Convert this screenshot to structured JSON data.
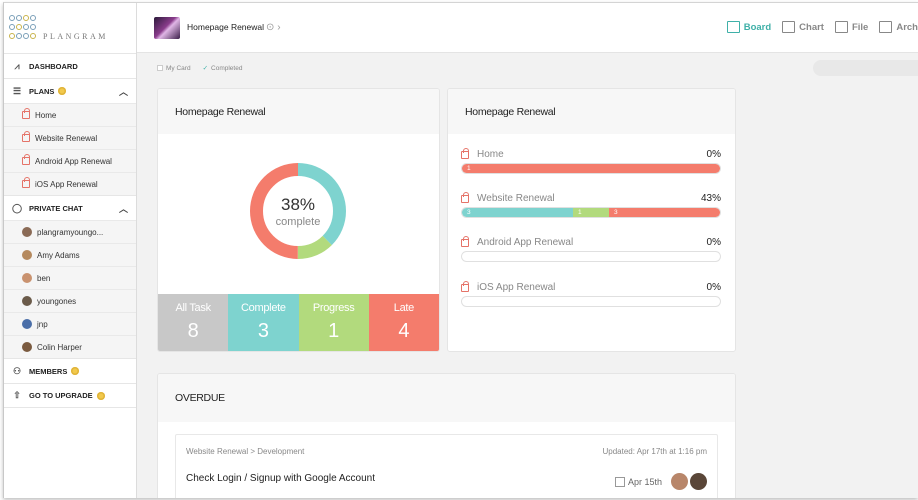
{
  "brand": {
    "name": "PLANGRAM"
  },
  "sidebar": {
    "dashboard": "DASHBOARD",
    "plans": "PLANS",
    "plan_items": [
      "Home",
      "Website Renewal",
      "Android App Renewal",
      "iOS App Renewal"
    ],
    "private_chat": "PRIVATE CHAT",
    "chat_items": [
      "plangramyoungo...",
      "Amy Adams",
      "ben",
      "youngones",
      "jnp",
      "Colin Harper"
    ],
    "members": "MEMBERS",
    "upgrade": "GO TO UPGRADE"
  },
  "header": {
    "project_name": "Homepage Renewal",
    "tabs": [
      {
        "label": "Board",
        "icon": "board-icon",
        "active": true
      },
      {
        "label": "Chart",
        "icon": "chart-icon",
        "active": false
      },
      {
        "label": "File",
        "icon": "file-icon",
        "active": false
      },
      {
        "label": "Arch",
        "icon": "archive-icon",
        "active": false
      }
    ]
  },
  "filters": {
    "my_card": "My Card",
    "completed": "Completed"
  },
  "summary": {
    "title": "Homepage Renewal",
    "percent": "38%",
    "percent_label": "complete",
    "donut": {
      "complete": 3,
      "progress": 1,
      "late": 4
    },
    "stats": [
      {
        "label": "All Task",
        "value": "8",
        "color": "#c8c8c8"
      },
      {
        "label": "Complete",
        "value": "3",
        "color": "#7ed3cf"
      },
      {
        "label": "Progress",
        "value": "1",
        "color": "#b2da7d"
      },
      {
        "label": "Late",
        "value": "4",
        "color": "#f47c6c"
      }
    ]
  },
  "progress": {
    "title": "Homepage Renewal",
    "items": [
      {
        "name": "Home",
        "percent": "0%",
        "segments": [
          {
            "label": "1",
            "fraction": 1.0,
            "color": "#f47c6c"
          }
        ]
      },
      {
        "name": "Website Renewal",
        "percent": "43%",
        "segments": [
          {
            "label": "3",
            "fraction": 0.43,
            "color": "#7ed3cf"
          },
          {
            "label": "1",
            "fraction": 0.14,
            "color": "#b2da7d"
          },
          {
            "label": "3",
            "fraction": 0.43,
            "color": "#f47c6c"
          }
        ]
      },
      {
        "name": "Android App Renewal",
        "percent": "0%",
        "segments": []
      },
      {
        "name": "iOS App Renewal",
        "percent": "0%",
        "segments": []
      }
    ]
  },
  "overdue": {
    "title": "OVERDUE",
    "task": {
      "path": "Website Renewal > Development",
      "updated": "Updated: Apr 17th at 1:16 pm",
      "title": "Check Login / Signup with Google Account",
      "due": "Apr 15th"
    }
  },
  "colors": {
    "accent": "#3fb0a8",
    "complete": "#7ed3cf",
    "progress": "#b2da7d",
    "late": "#f47c6c",
    "lock": "#e57368"
  }
}
